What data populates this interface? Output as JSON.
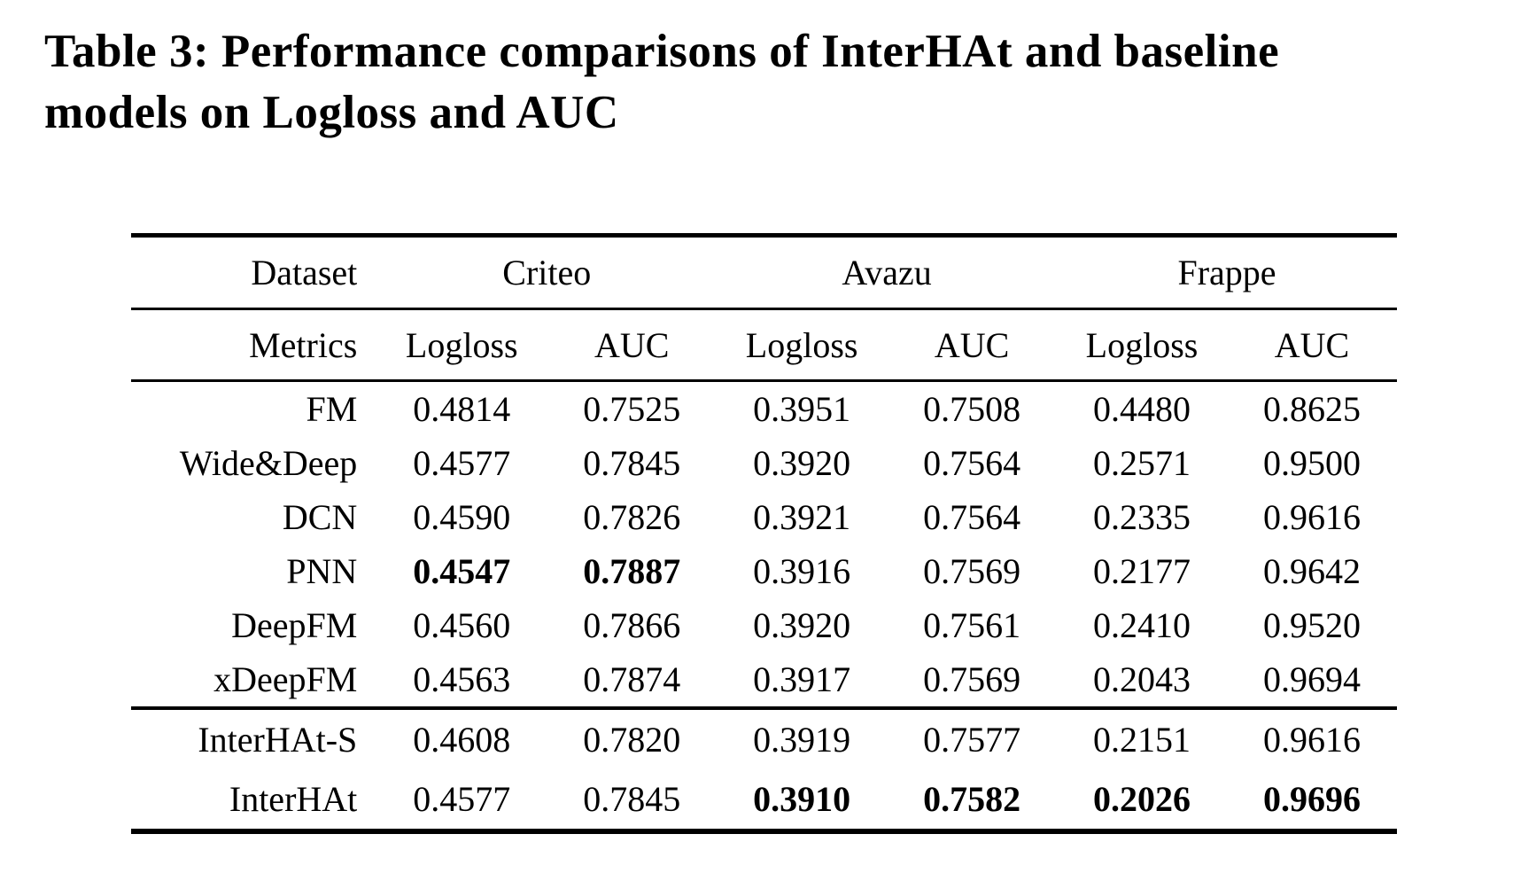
{
  "chart_data": {
    "type": "table",
    "title": "Table 3: Performance comparisons of InterHAt and baseline models on Logloss and AUC",
    "title_lines": [
      "Table 3: Performance comparisons of InterHAt and baseline",
      "models on Logloss and AUC"
    ],
    "header": {
      "dataset_label": "Dataset",
      "metrics_label": "Metrics",
      "datasets": [
        "Criteo",
        "Avazu",
        "Frappe"
      ],
      "metrics": [
        "Logloss",
        "AUC",
        "Logloss",
        "AUC",
        "Logloss",
        "AUC"
      ]
    },
    "rows": [
      {
        "model": "FM",
        "values": [
          "0.4814",
          "0.7525",
          "0.3951",
          "0.7508",
          "0.4480",
          "0.8625"
        ],
        "bold": [
          false,
          false,
          false,
          false,
          false,
          false
        ]
      },
      {
        "model": "Wide&Deep",
        "values": [
          "0.4577",
          "0.7845",
          "0.3920",
          "0.7564",
          "0.2571",
          "0.9500"
        ],
        "bold": [
          false,
          false,
          false,
          false,
          false,
          false
        ]
      },
      {
        "model": "DCN",
        "values": [
          "0.4590",
          "0.7826",
          "0.3921",
          "0.7564",
          "0.2335",
          "0.9616"
        ],
        "bold": [
          false,
          false,
          false,
          false,
          false,
          false
        ]
      },
      {
        "model": "PNN",
        "values": [
          "0.4547",
          "0.7887",
          "0.3916",
          "0.7569",
          "0.2177",
          "0.9642"
        ],
        "bold": [
          true,
          true,
          false,
          false,
          false,
          false
        ]
      },
      {
        "model": "DeepFM",
        "values": [
          "0.4560",
          "0.7866",
          "0.3920",
          "0.7561",
          "0.2410",
          "0.9520"
        ],
        "bold": [
          false,
          false,
          false,
          false,
          false,
          false
        ]
      },
      {
        "model": "xDeepFM",
        "values": [
          "0.4563",
          "0.7874",
          "0.3917",
          "0.7569",
          "0.2043",
          "0.9694"
        ],
        "bold": [
          false,
          false,
          false,
          false,
          false,
          false
        ]
      },
      {
        "model": "InterHAt-S",
        "values": [
          "0.4608",
          "0.7820",
          "0.3919",
          "0.7577",
          "0.2151",
          "0.9616"
        ],
        "bold": [
          false,
          false,
          false,
          false,
          false,
          false
        ]
      },
      {
        "model": "InterHAt",
        "values": [
          "0.4577",
          "0.7845",
          "0.3910",
          "0.7582",
          "0.2026",
          "0.9696"
        ],
        "bold": [
          false,
          false,
          true,
          true,
          true,
          true
        ]
      }
    ],
    "text_color": "#000000",
    "background_color": "#ffffff"
  }
}
